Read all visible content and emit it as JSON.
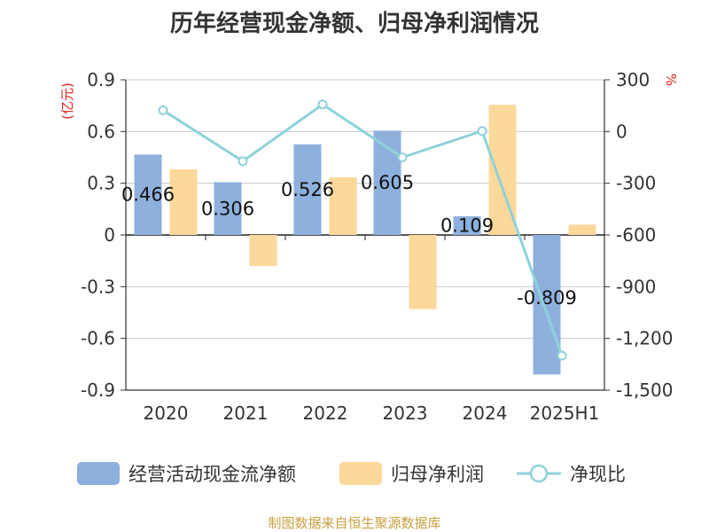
{
  "chart_data": {
    "type": "bar",
    "title": "历年经营现金净额、归母净利润情况",
    "left_axis_label": "(亿元)",
    "right_axis_label": "%",
    "categories": [
      "2020",
      "2021",
      "2022",
      "2023",
      "2024",
      "2025H1"
    ],
    "series": [
      {
        "name": "经营活动现金流净额",
        "type": "bar",
        "axis": "left",
        "color": "#8eb0dd",
        "values": [
          0.466,
          0.306,
          0.526,
          0.605,
          0.109,
          -0.809
        ],
        "data_labels": [
          "0.466",
          "0.306",
          "0.526",
          "0.605",
          "0.109",
          "-0.809"
        ]
      },
      {
        "name": "归母净利润",
        "type": "bar",
        "axis": "left",
        "color": "#fdd89b",
        "values": [
          0.38,
          -0.18,
          0.335,
          -0.43,
          0.755,
          0.06
        ]
      },
      {
        "name": "净现比",
        "type": "line",
        "axis": "right",
        "color": "#8ed2d9",
        "values": [
          123,
          -172,
          157,
          -150,
          3,
          -1300
        ]
      }
    ],
    "y_left": {
      "min": -0.9,
      "max": 0.9,
      "ticks": [
        "0.9",
        "0.6",
        "0.3",
        "0",
        "-0.3",
        "-0.6",
        "-0.9"
      ]
    },
    "y_right": {
      "min": -1500,
      "max": 300,
      "ticks": [
        "300",
        "0",
        "-300",
        "-600",
        "-900",
        "-1,200",
        "-1,500"
      ]
    },
    "grid": true,
    "legend_position": "bottom"
  },
  "source_text": "制图数据来自恒生聚源数据库"
}
